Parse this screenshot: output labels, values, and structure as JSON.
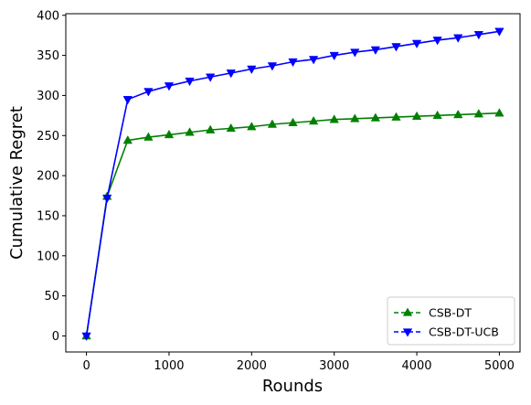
{
  "chart_data": {
    "type": "line",
    "title": "",
    "xlabel": "Rounds",
    "ylabel": "Cumulative Regret",
    "xlim": [
      -250,
      5250
    ],
    "ylim": [
      -20,
      402
    ],
    "xticks": [
      0,
      1000,
      2000,
      3000,
      4000,
      5000
    ],
    "yticks": [
      0,
      50,
      100,
      150,
      200,
      250,
      300,
      350,
      400
    ],
    "grid": false,
    "legend_position": "lower-right",
    "x": [
      0,
      250,
      500,
      750,
      1000,
      1250,
      1500,
      1750,
      2000,
      2250,
      2500,
      2750,
      3000,
      3250,
      3500,
      3750,
      4000,
      4250,
      4500,
      4750,
      5000
    ],
    "series": [
      {
        "name": "CSB-DT",
        "color": "#008000",
        "marker": "triangle-up",
        "values": [
          0,
          174,
          244,
          248,
          251,
          254,
          257,
          259,
          261,
          264,
          266,
          268,
          270,
          271,
          272,
          273,
          274,
          275,
          276,
          277,
          278
        ]
      },
      {
        "name": "CSB-DT-UCB",
        "color": "#0000ff",
        "marker": "triangle-down",
        "values": [
          0,
          172,
          295,
          305,
          312,
          318,
          323,
          328,
          333,
          337,
          342,
          345,
          350,
          354,
          357,
          361,
          365,
          369,
          372,
          376,
          380
        ]
      }
    ]
  }
}
